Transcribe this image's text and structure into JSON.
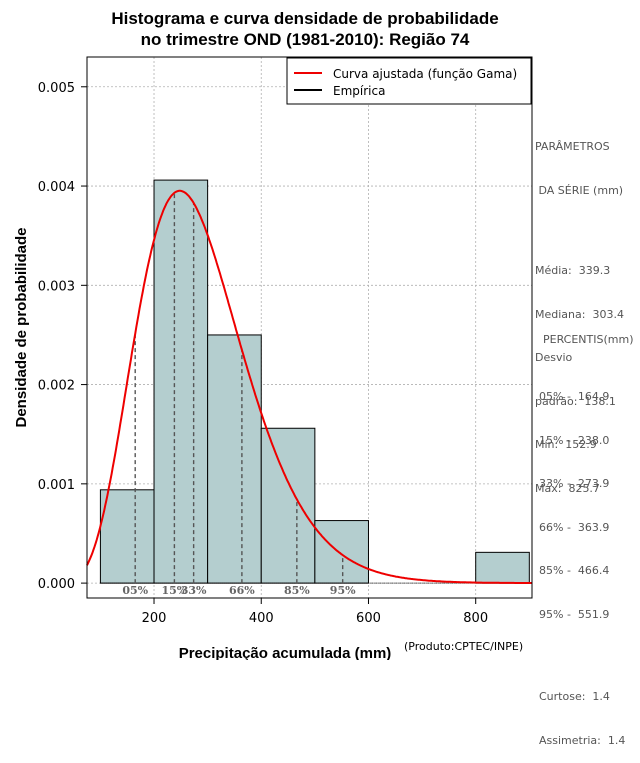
{
  "chart_data": {
    "type": "histogram",
    "title_line1": "Histograma e curva densidade de probabilidade",
    "title_line2": "no trimestre OND (1981-2010): Região 74",
    "xlabel": "Precipitação acumulada (mm)",
    "ylabel": "Densidade de probabilidade",
    "xlim": [
      75,
      905
    ],
    "ylim": [
      -0.00015,
      0.0053
    ],
    "x_ticks": [
      200,
      400,
      600,
      800
    ],
    "y_ticks": [
      0.0,
      0.001,
      0.002,
      0.003,
      0.004,
      0.005
    ],
    "y_tick_labels": [
      "0.000",
      "0.001",
      "0.002",
      "0.003",
      "0.004",
      "0.005"
    ],
    "grid": true,
    "bins": [
      {
        "start": 100,
        "end": 200,
        "density": 0.00094
      },
      {
        "start": 200,
        "end": 300,
        "density": 0.00406
      },
      {
        "start": 300,
        "end": 400,
        "density": 0.0025
      },
      {
        "start": 400,
        "end": 500,
        "density": 0.00156
      },
      {
        "start": 500,
        "end": 600,
        "density": 0.00063
      },
      {
        "start": 600,
        "end": 700,
        "density": 0.0
      },
      {
        "start": 700,
        "end": 800,
        "density": 0.0
      },
      {
        "start": 800,
        "end": 900,
        "density": 0.00031
      }
    ],
    "fitted_curve": {
      "name": "Curva ajustada (função Gama)",
      "distribution": "gamma",
      "shape": 7.2,
      "scale": 40.0,
      "location": 0.0,
      "color": "#ee0000"
    },
    "legend": [
      {
        "label": "Curva ajustada (função Gama)",
        "color": "#ee0000"
      },
      {
        "label": "Empírica",
        "color": "#000000"
      }
    ],
    "percentile_markers": [
      {
        "label": "05%",
        "x": 164.9
      },
      {
        "label": "15%",
        "x": 238.0
      },
      {
        "label": "33%",
        "x": 273.9
      },
      {
        "label": "66%",
        "x": 363.9
      },
      {
        "label": "85%",
        "x": 466.4
      },
      {
        "label": "95%",
        "x": 551.9
      }
    ],
    "colors": {
      "bar_fill": "#b4cecf",
      "bar_stroke": "#000000",
      "grid": "#b0b0b0",
      "percentile_line": "#555555",
      "percentile_label": "#666666"
    }
  },
  "params": {
    "heading1": "PARÂMETROS",
    "heading2": " DA SÉRIE (mm)",
    "items": [
      "Média:  339.3",
      "Mediana:  303.4",
      "Desvio",
      "padrão:  138.1",
      "Mín:  152.9",
      "Máx:  825.7"
    ]
  },
  "percentiles": {
    "heading": "PERCENTIS(mm)",
    "items": [
      "05% -  164.9",
      "15% -  238.0",
      "33% -  273.9",
      "66% -  363.9",
      "85% -  466.4",
      "95% -  551.9"
    ]
  },
  "stats": {
    "items": [
      "Curtose:  1.4",
      "Assimetria:  1.4"
    ]
  },
  "credit": "(Produto:CPTEC/INPE)"
}
